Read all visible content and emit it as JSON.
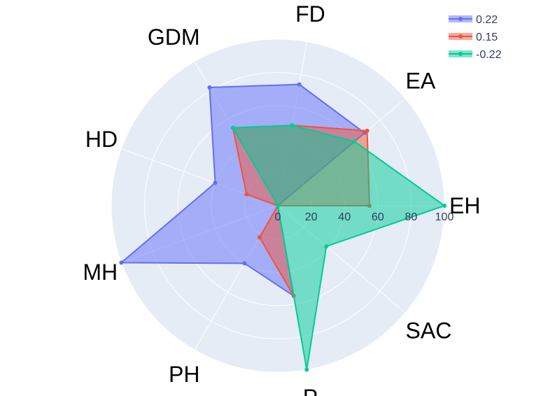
{
  "chart_data": {
    "type": "radar",
    "categories": [
      "EH",
      "EA",
      "FD",
      "GDM",
      "HD",
      "MH",
      "PH",
      "P",
      "SAC"
    ],
    "radial_range": [
      0,
      100
    ],
    "radial_ticks": [
      "0",
      "20",
      "40",
      "60",
      "80",
      "100"
    ],
    "legend_position": "top-right",
    "series": [
      {
        "name": "0.22",
        "color": "#636efa",
        "values": [
          0,
          68,
          74,
          82,
          40,
          100,
          40,
          55,
          0
        ]
      },
      {
        "name": "0.15",
        "color": "#ef553b",
        "values": [
          55,
          70,
          49,
          54,
          20,
          0,
          22,
          55,
          0
        ]
      },
      {
        "name": "-0.22",
        "color": "#00cc96",
        "values": [
          100,
          60,
          49,
          54,
          0,
          0,
          0,
          100,
          38
        ]
      }
    ],
    "background_color": "#e5ecf6",
    "grid": true
  }
}
